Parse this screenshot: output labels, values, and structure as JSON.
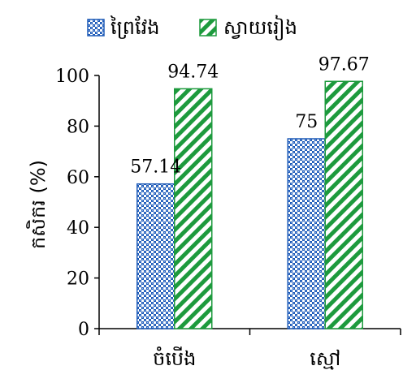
{
  "chart_data": {
    "type": "bar",
    "title": "",
    "categories": [
      "ចំបើង",
      "ស្មៅ"
    ],
    "series": [
      {
        "name": "ព្រៃវែង",
        "values": [
          57.14,
          75
        ],
        "labels": [
          "57.14",
          "75"
        ],
        "pattern": "dots",
        "color": "#1f5bb7"
      },
      {
        "name": "ស្វាយរៀង",
        "values": [
          94.74,
          97.67
        ],
        "labels": [
          "94.74",
          "97.67"
        ],
        "pattern": "diagonal-stripes",
        "color": "#1d9a3d"
      }
    ],
    "ylabel": "កសិករ (%)",
    "xlabel": "",
    "ylim": [
      0,
      100
    ],
    "yticks": [
      "0",
      "20",
      "40",
      "60",
      "80",
      "100"
    ],
    "legend_position": "top",
    "grid": false
  }
}
